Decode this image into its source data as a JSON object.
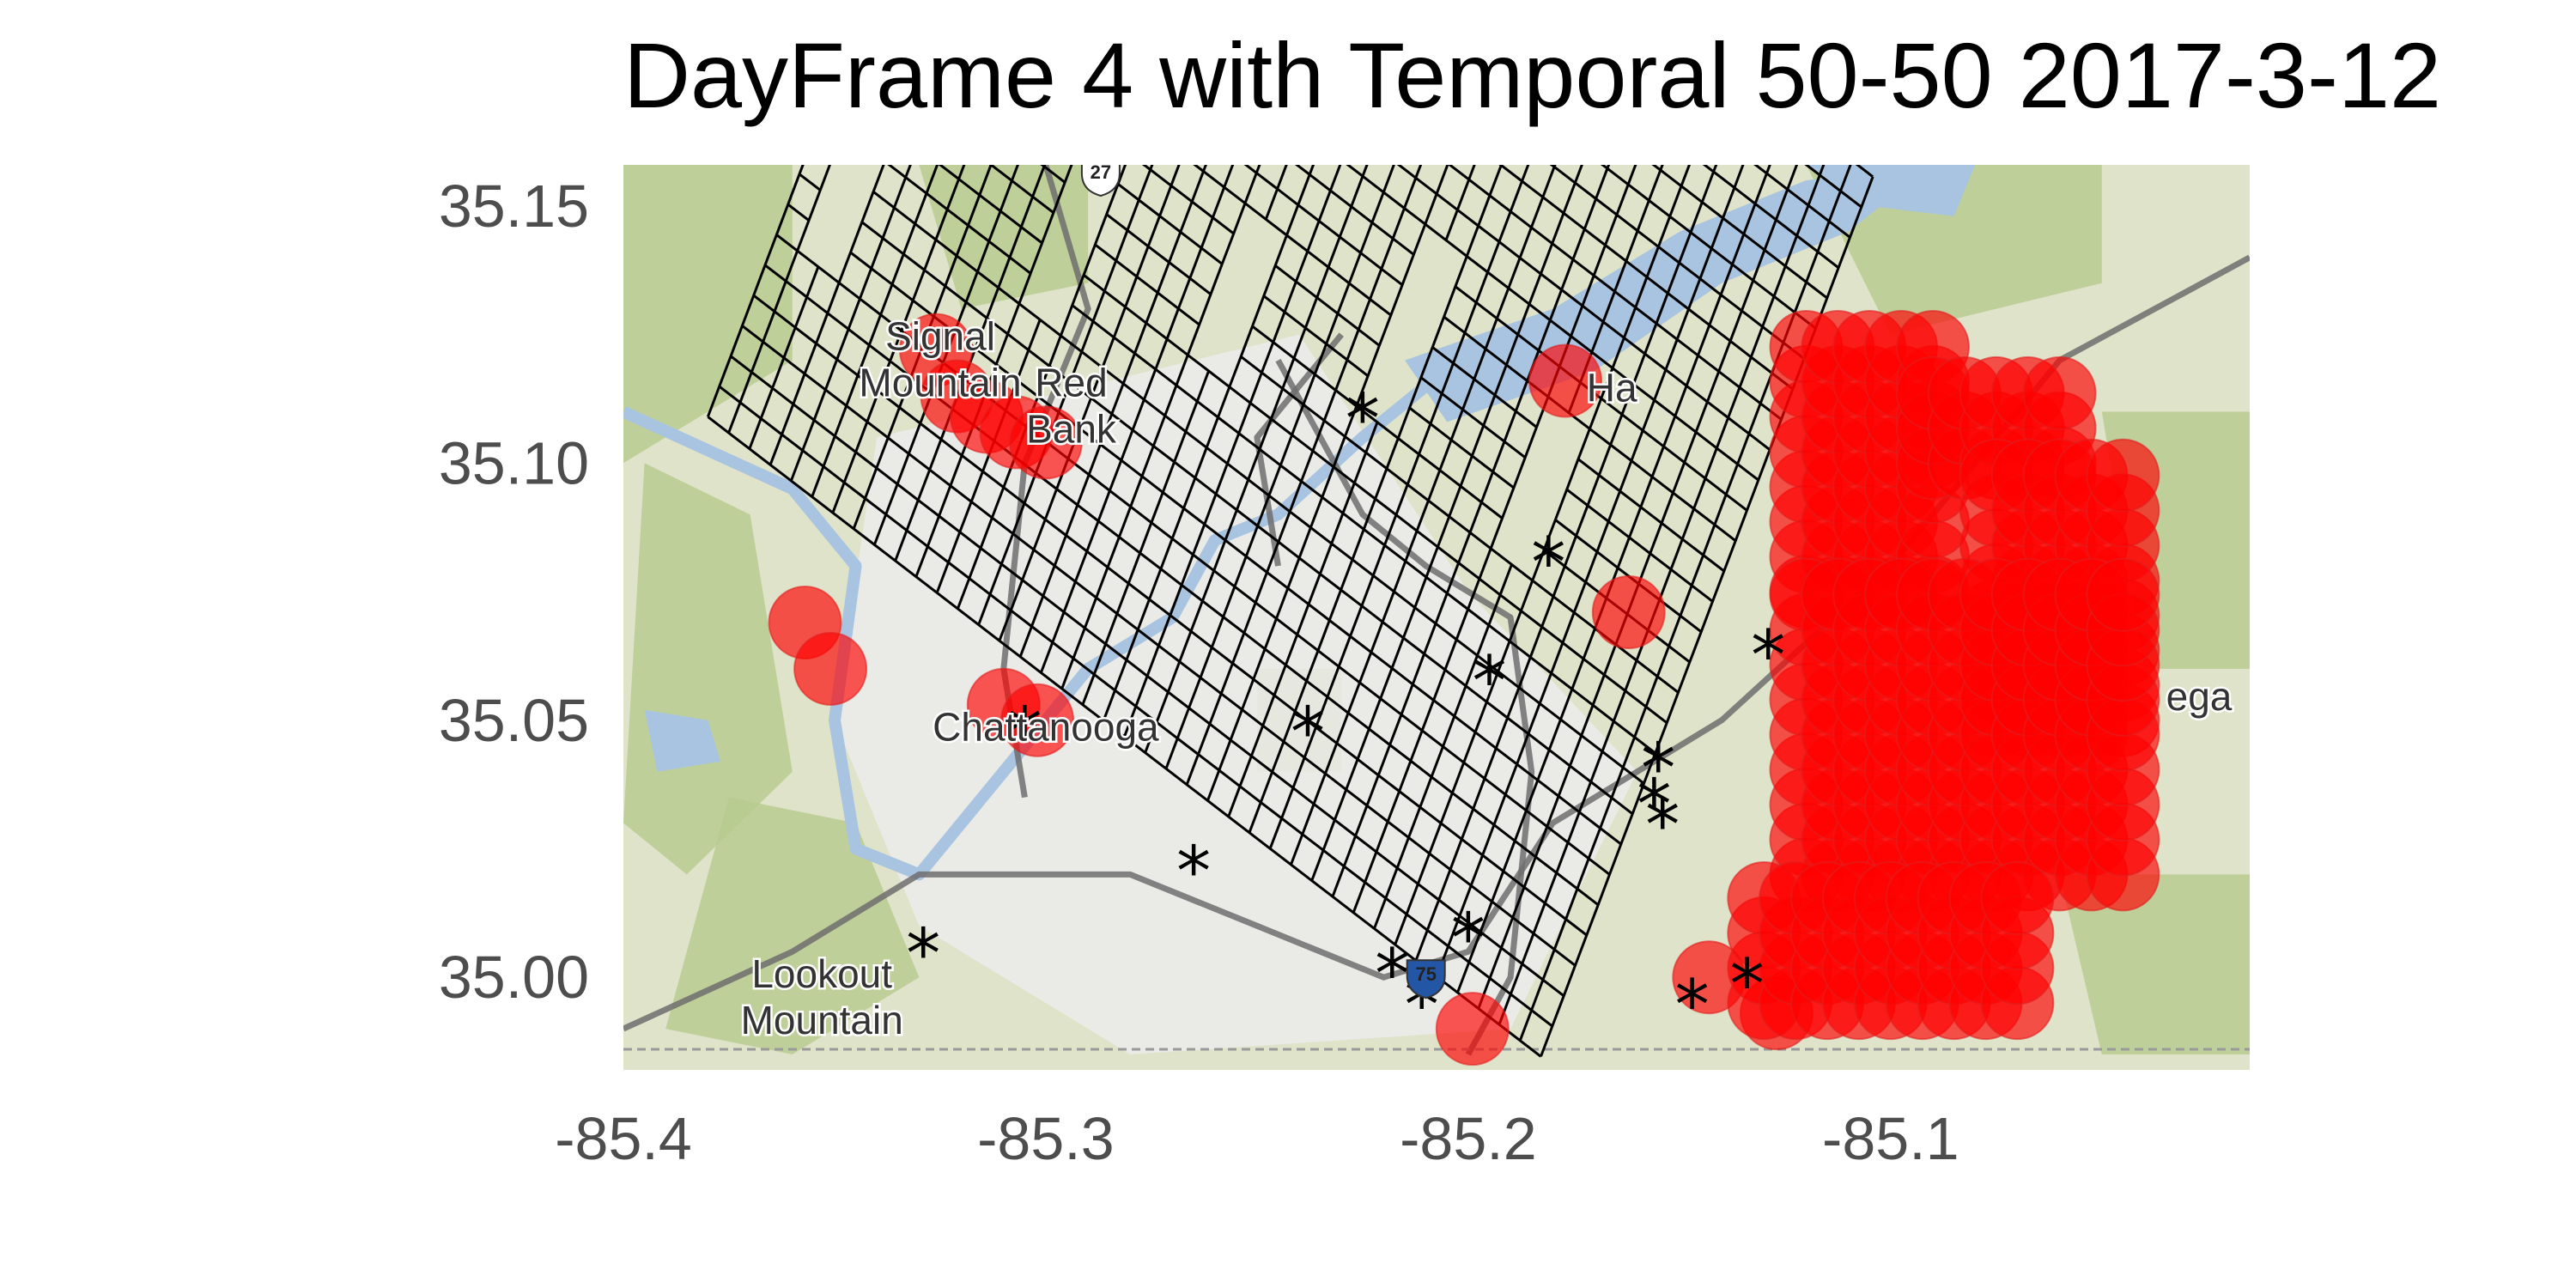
{
  "title": "DayFrame 4 with Temporal 50-50 2017-3-12",
  "axes": {
    "x_ticks": [
      "-85.4",
      "-85.3",
      "-85.2",
      "-85.1"
    ],
    "y_ticks": [
      "35.15",
      "35.10",
      "35.05",
      "35.00"
    ],
    "x_tick_values": [
      -85.4,
      -85.3,
      -85.2,
      -85.1
    ],
    "y_tick_values": [
      35.15,
      35.1,
      35.05,
      35.0
    ],
    "xlim": [
      -85.4,
      -85.015
    ],
    "ylim": [
      34.982,
      35.158
    ]
  },
  "basemap": {
    "place_labels": [
      {
        "text": "Signal",
        "lon": -85.325,
        "lat": 35.122
      },
      {
        "text": "Mountain",
        "lon": -85.325,
        "lat": 35.113
      },
      {
        "text": "Red",
        "lon": -85.294,
        "lat": 35.113
      },
      {
        "text": "Bank",
        "lon": -85.294,
        "lat": 35.104
      },
      {
        "text": "Chattanooga",
        "lon": -85.3,
        "lat": 35.046
      },
      {
        "text": "Lookout",
        "lon": -85.353,
        "lat": 34.998
      },
      {
        "text": "Mountain",
        "lon": -85.353,
        "lat": 34.989
      },
      {
        "text": "Ha",
        "lon": -85.166,
        "lat": 35.112
      },
      {
        "text": "ega",
        "lon": -85.027,
        "lat": 35.052
      }
    ],
    "road_shields": [
      {
        "text": "27",
        "lon": -85.287,
        "lat": 35.156
      },
      {
        "text": "75",
        "lon": -85.21,
        "lat": 35.0
      }
    ],
    "colors": {
      "land": "#dfe3c9",
      "forest": "#b7c98e",
      "urban": "#ececec",
      "water": "#a9c4e0",
      "road": "#6f6f6f"
    }
  },
  "chart_data": {
    "type": "scatter",
    "title": "DayFrame 4 with Temporal 50-50 2017-3-12",
    "xlabel": "",
    "ylabel": "",
    "xlim": [
      -85.4,
      -85.015
    ],
    "ylim": [
      34.982,
      35.158
    ],
    "grid": {
      "origin": [
        -85.38,
        35.109
      ],
      "u_step": [
        0.00493,
        -0.00311
      ],
      "v_step": [
        0.00271,
        0.0059
      ],
      "rows": 29,
      "cols": 40,
      "notches": [
        {
          "u": 1,
          "v": 6,
          "len": 5
        },
        {
          "u": 10,
          "v": 9,
          "len": 6
        },
        {
          "u": 17,
          "v": 11,
          "len": 5
        },
        {
          "u": 24,
          "v": 13,
          "len": 6
        },
        {
          "u": 31,
          "v": 12,
          "len": 5
        }
      ],
      "stroke_color": "#000000"
    },
    "predicted_hotspots": {
      "color": "#ff0000",
      "opacity": 0.65,
      "isolated": [
        [
          -85.326,
          35.122
        ],
        [
          -85.321,
          35.113
        ],
        [
          -85.314,
          35.109
        ],
        [
          -85.307,
          35.106
        ],
        [
          -85.3,
          35.104
        ],
        [
          -85.177,
          35.116
        ],
        [
          -85.162,
          35.071
        ],
        [
          -85.357,
          35.069
        ],
        [
          -85.351,
          35.06
        ],
        [
          -85.31,
          35.053
        ],
        [
          -85.302,
          35.05
        ],
        [
          -85.199,
          34.99
        ],
        [
          -85.143,
          35.0
        ],
        [
          -85.127,
          34.993
        ]
      ],
      "cluster_regions": [
        {
          "lon": [
            -85.12,
            -85.09
          ],
          "lat": [
            35.075,
            35.125
          ]
        },
        {
          "lon": [
            -85.09,
            -85.06
          ],
          "lat": [
            35.1,
            35.12
          ]
        },
        {
          "lon": [
            -85.075,
            -85.045
          ],
          "lat": [
            35.05,
            35.1
          ]
        },
        {
          "lon": [
            -85.12,
            -85.045
          ],
          "lat": [
            35.02,
            35.075
          ]
        },
        {
          "lon": [
            -85.13,
            -85.07
          ],
          "lat": [
            34.995,
            35.02
          ]
        }
      ]
    },
    "actual_events": {
      "marker": "*",
      "color": "#000000",
      "points": [
        [
          -85.225,
          35.109
        ],
        [
          -85.181,
          35.081
        ],
        [
          -85.195,
          35.058
        ],
        [
          -85.129,
          35.063
        ],
        [
          -85.238,
          35.048
        ],
        [
          -85.305,
          35.048
        ],
        [
          -85.265,
          35.021
        ],
        [
          -85.155,
          35.041
        ],
        [
          -85.156,
          35.034
        ],
        [
          -85.154,
          35.03
        ],
        [
          -85.2,
          35.008
        ],
        [
          -85.218,
          35.001
        ],
        [
          -85.211,
          34.995
        ],
        [
          -85.147,
          34.995
        ],
        [
          -85.134,
          34.999
        ],
        [
          -85.329,
          35.005
        ]
      ]
    }
  }
}
